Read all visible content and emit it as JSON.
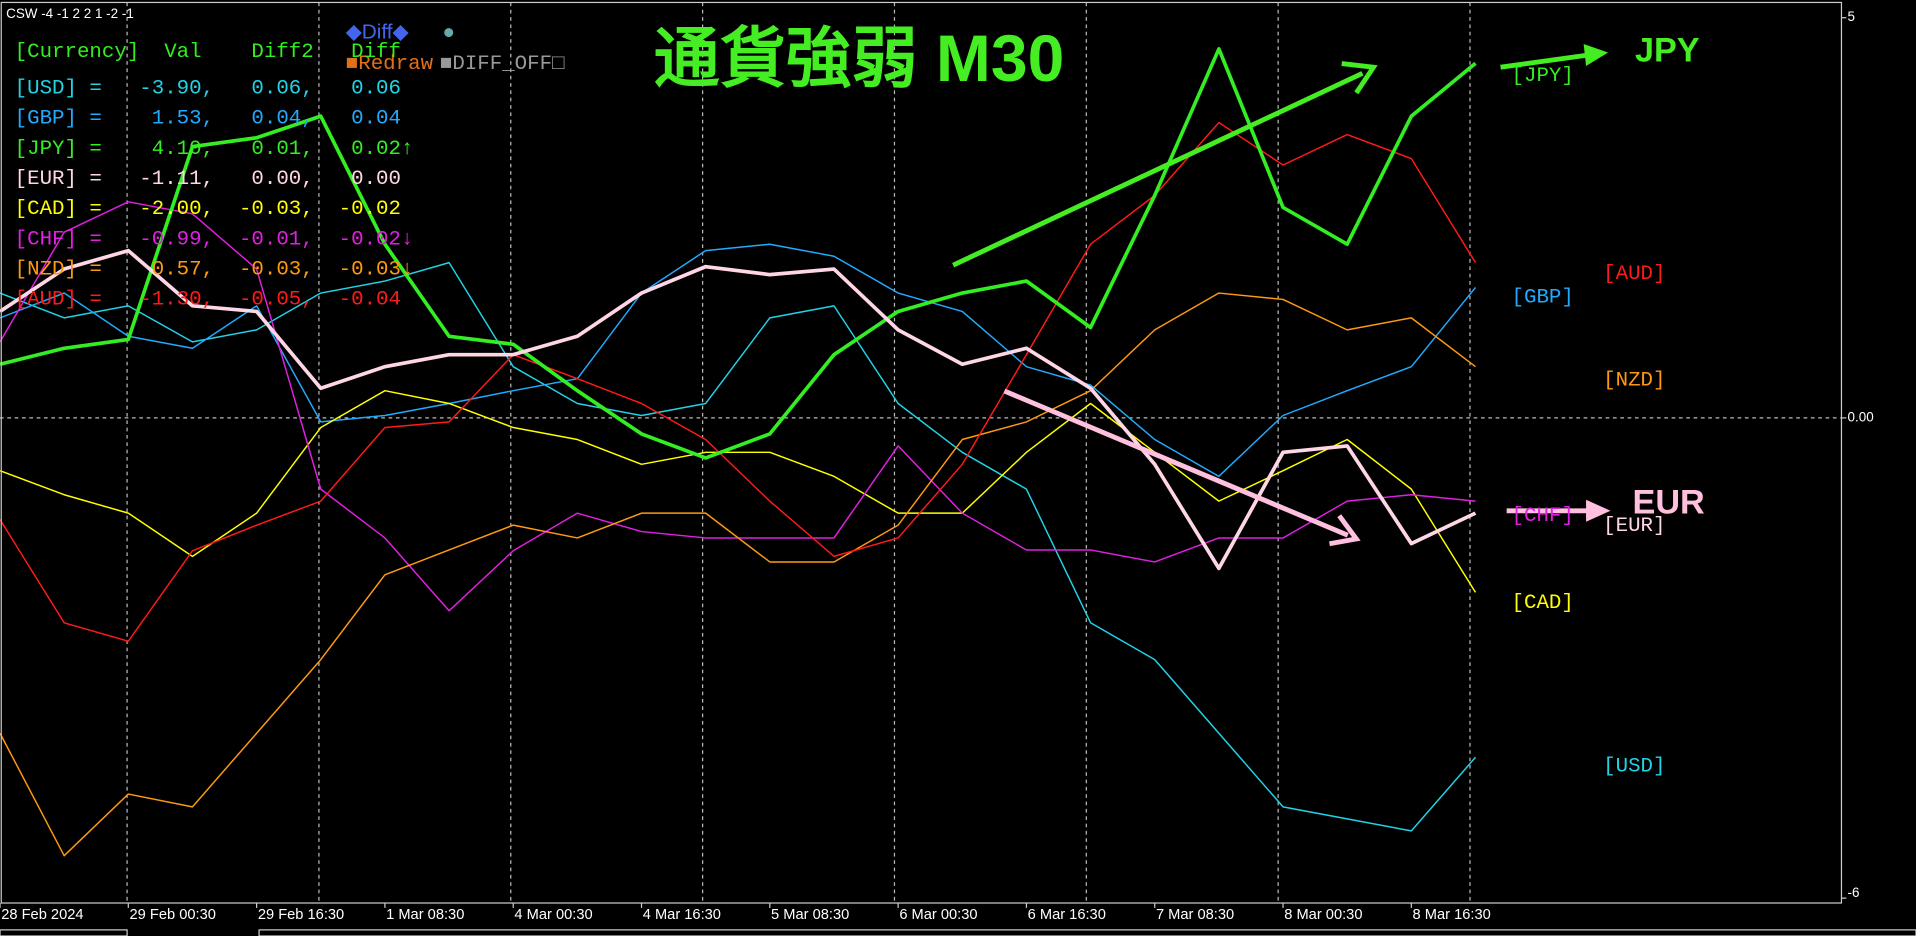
{
  "chart_data": {
    "type": "line",
    "indicator_label": "CSW -4 -1 2 2 1 -2 -1",
    "title": "通貨強弱 M30",
    "annotations": [
      "JPY",
      "EUR"
    ],
    "buttons": [
      "◆Diff◆",
      "●",
      "■Redraw",
      "■DIFF_OFF□"
    ],
    "panel": {
      "header": "[Currency]  Val    Diff2   Diff",
      "rows": [
        "[USD] =   -3.90,   0.06,   0.06",
        "[GBP] =    1.53,   0.04,   0.04",
        "[JPY] =    4.10,   0.01,   0.02↑",
        "[EUR] =   -1.11,   0.00,   0.00",
        "[CAD] =   -2.00,  -0.03,  -0.02",
        "[CHF] =   -0.99,  -0.01,  -0.02↓",
        "[NZD] =    0.57,  -0.03,  -0.03↓",
        "[AUD] =   -1.30,  -0.05,  -0.04"
      ]
    },
    "categories": [
      "28 Feb 2024",
      null,
      "29 Feb 00:30",
      null,
      "29 Feb 16:30",
      null,
      "1 Mar 08:30",
      null,
      "4 Mar 00:30",
      null,
      "4 Mar 16:30",
      null,
      "5 Mar 08:30",
      null,
      "6 Mar 00:30",
      null,
      "6 Mar 16:30",
      null,
      "7 Mar 08:30",
      null,
      "8 Mar 00:30",
      null,
      "8 Mar 16:30",
      null
    ],
    "ylim": [
      -6,
      5
    ],
    "yticks": [
      5,
      {
        "value": 0,
        "label": "0.00"
      },
      -6
    ],
    "zero_line": true,
    "series": [
      {
        "name": "[USD]",
        "color": "#22d3e6",
        "width": 1.2,
        "values": [
          1.56,
          1.25,
          1.4,
          0.95,
          1.1,
          1.56,
          1.71,
          1.94,
          0.64,
          0.18,
          0.03,
          0.18,
          1.25,
          1.4,
          0.18,
          -0.43,
          -0.89,
          -2.56,
          -3.02,
          -3.94,
          -4.86,
          -5.01,
          -5.16,
          -4.24
        ]
      },
      {
        "name": "[GBP]",
        "color": "#22aaff",
        "width": 1.2,
        "values": [
          1.25,
          1.56,
          1.02,
          0.87,
          1.4,
          -0.05,
          0.03,
          0.18,
          0.34,
          0.49,
          1.56,
          2.09,
          2.17,
          2.02,
          1.56,
          1.33,
          0.64,
          0.41,
          -0.27,
          -0.73,
          0.03,
          0.34,
          0.64,
          1.63
        ]
      },
      {
        "name": "[JPY]",
        "color": "#33ee22",
        "width": 3,
        "values": [
          0.67,
          0.87,
          0.98,
          3.39,
          3.5,
          3.77,
          2.17,
          1.02,
          0.92,
          0.34,
          -0.2,
          -0.5,
          -0.2,
          0.79,
          1.33,
          1.56,
          1.71,
          1.13,
          2.78,
          4.61,
          2.63,
          2.17,
          3.77,
          4.43
        ]
      },
      {
        "name": "[EUR]",
        "color": "#ffd6e6",
        "width": 3,
        "values": [
          1.33,
          1.86,
          2.09,
          1.4,
          1.33,
          0.37,
          0.64,
          0.79,
          0.79,
          1.02,
          1.56,
          1.89,
          1.79,
          1.86,
          1.1,
          0.67,
          0.87,
          0.37,
          -0.58,
          -1.88,
          -0.43,
          -0.35,
          -1.57,
          -1.19
        ]
      },
      {
        "name": "[CAD]",
        "color": "#ffff00",
        "width": 1.2,
        "values": [
          -0.66,
          -0.96,
          -1.19,
          -1.73,
          -1.19,
          -0.12,
          0.34,
          0.18,
          -0.12,
          -0.27,
          -0.58,
          -0.43,
          -0.43,
          -0.73,
          -1.19,
          -1.19,
          -0.43,
          0.18,
          -0.43,
          -1.04,
          -0.66,
          -0.27,
          -0.89,
          -2.18
        ]
      },
      {
        "name": "[CHF]",
        "color": "#e020e0",
        "width": 1.2,
        "values": [
          0.95,
          2.32,
          2.7,
          2.55,
          1.86,
          -0.89,
          -1.5,
          -2.41,
          -1.66,
          -1.19,
          -1.42,
          -1.5,
          -1.5,
          -1.5,
          -0.35,
          -1.19,
          -1.65,
          -1.65,
          -1.8,
          -1.5,
          -1.5,
          -1.04,
          -0.96,
          -1.04
        ]
      },
      {
        "name": "[NZD]",
        "color": "#ff9a10",
        "width": 1.2,
        "values": [
          -3.94,
          -5.47,
          -4.7,
          -4.86,
          -3.94,
          -3.02,
          -1.96,
          -1.65,
          -1.34,
          -1.5,
          -1.19,
          -1.19,
          -1.8,
          -1.8,
          -1.34,
          -0.27,
          -0.05,
          0.34,
          1.1,
          1.56,
          1.48,
          1.1,
          1.25,
          0.64
        ]
      },
      {
        "name": "[AUD]",
        "color": "#ff1a1a",
        "width": 1.2,
        "values": [
          -1.27,
          -2.56,
          -2.79,
          -1.66,
          -1.34,
          -1.04,
          -0.12,
          -0.05,
          0.79,
          0.49,
          0.18,
          -0.27,
          -1.04,
          -1.73,
          -1.5,
          -0.58,
          0.79,
          2.17,
          2.78,
          3.69,
          3.16,
          3.54,
          3.24,
          1.94
        ]
      }
    ]
  }
}
